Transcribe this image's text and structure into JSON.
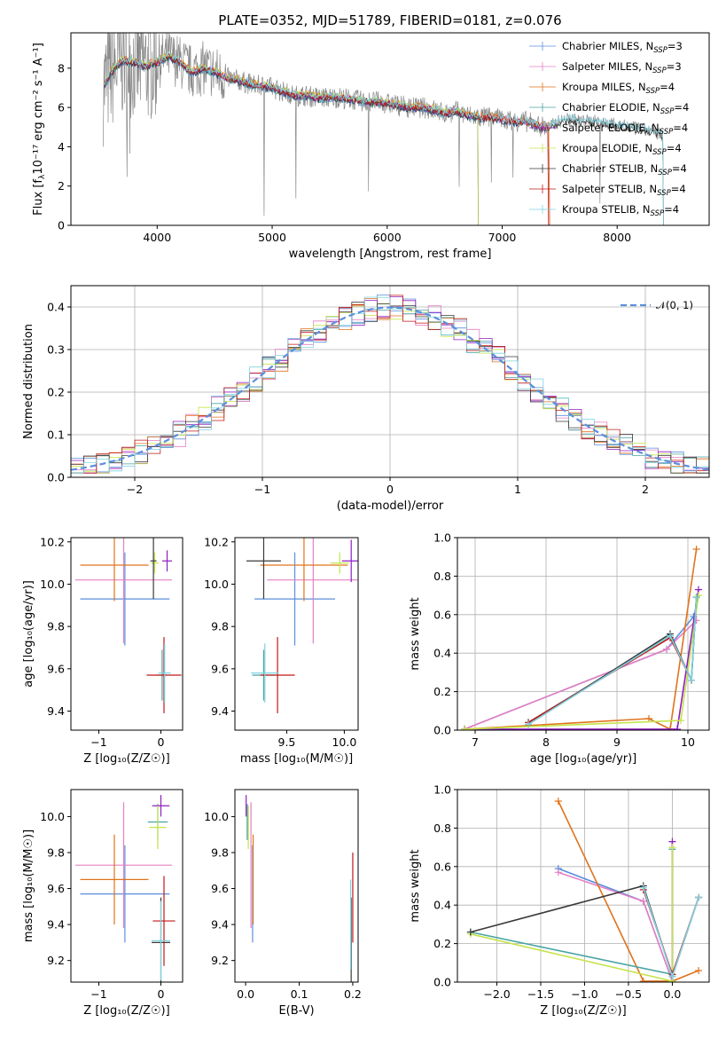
{
  "figure_title": "PLATE=0352, MJD=51789, FIBERID=0181, z=0.076",
  "colors": {
    "Chabrier MILES": "#5b8fdc",
    "Salpeter MILES": "#e67fc4",
    "Kroupa MILES": "#e0731c",
    "Chabrier ELODIE": "#4aa3a3",
    "Salpeter ELODIE": "#8e1ec0",
    "Kroupa ELODIE": "#c5e34a",
    "Chabrier STELIB": "#3a3a3a",
    "Salpeter STELIB": "#c01818",
    "Kroupa STELIB": "#7ed3e0",
    "data": "#8a8a8a",
    "normal": "#5b8fdc"
  },
  "chart_data": [
    {
      "id": "spectrum",
      "type": "line",
      "xlabel": "wavelength [Angstrom, rest frame]",
      "ylabel_main": "Flux [f",
      "ylabel_sub": "λ",
      "ylabel_rest": "10⁻¹⁷ erg cm⁻² s⁻¹ A⁻¹]",
      "xlim": [
        3250,
        8800
      ],
      "ylim": [
        0,
        9.8
      ],
      "xticks": [
        4000,
        5000,
        6000,
        7000,
        8000
      ],
      "yticks": [
        0,
        2,
        4,
        6,
        8
      ],
      "data_x": [
        3530,
        3600,
        3700,
        3800,
        3900,
        4000,
        4100,
        4200,
        4300,
        4400,
        4500,
        4600,
        4700,
        4800,
        4900,
        5000,
        5100,
        5200,
        5300,
        5400,
        5500,
        5600,
        5700,
        5800,
        5900,
        6000,
        6100,
        6200,
        6300,
        6400,
        6500,
        6600,
        6700,
        6800,
        6900,
        7000,
        7100,
        7200,
        7300,
        7400,
        7500,
        7600,
        7700,
        7800,
        7900,
        8000,
        8100,
        8200,
        8300,
        8400
      ],
      "data_y": [
        7.0,
        7.8,
        8.4,
        8.3,
        8.1,
        8.3,
        8.6,
        8.3,
        7.8,
        8.0,
        7.8,
        7.5,
        7.4,
        7.2,
        7.1,
        7.0,
        6.8,
        6.6,
        6.6,
        6.5,
        6.5,
        6.5,
        6.4,
        6.3,
        6.3,
        6.2,
        6.1,
        6.0,
        6.0,
        5.9,
        5.7,
        5.8,
        5.6,
        5.5,
        5.5,
        5.4,
        5.3,
        5.3,
        5.1,
        5.0,
        5.3,
        5.4,
        5.3,
        5.3,
        5.2,
        5.1,
        5.0,
        4.9,
        4.8,
        4.6
      ],
      "legend": [
        {
          "name": "Chabrier MILES, N",
          "sub": "SSP",
          "end": "=3"
        },
        {
          "name": "Salpeter MILES, N",
          "sub": "SSP",
          "end": "=3"
        },
        {
          "name": "Kroupa MILES, N",
          "sub": "SSP",
          "end": "=4"
        },
        {
          "name": "Chabrier ELODIE, N",
          "sub": "SSP",
          "end": "=4"
        },
        {
          "name": "Salpeter ELODIE, N",
          "sub": "SSP",
          "end": "=4"
        },
        {
          "name": "Kroupa ELODIE, N",
          "sub": "SSP",
          "end": "=4"
        },
        {
          "name": "Chabrier STELIB, N",
          "sub": "SSP",
          "end": "=4"
        },
        {
          "name": "Salpeter STELIB, N",
          "sub": "SSP",
          "end": "=4"
        },
        {
          "name": "Kroupa STELIB, N",
          "sub": "SSP",
          "end": "=4"
        }
      ],
      "legend_position": "upper-right"
    },
    {
      "id": "residuals",
      "type": "histogram",
      "xlabel": "(data-model)/error",
      "ylabel": "Normed distribution",
      "xlim": [
        -2.5,
        2.5
      ],
      "ylim": [
        0,
        0.45
      ],
      "xticks": [
        -2,
        -1,
        0,
        1,
        2
      ],
      "yticks": [
        0.0,
        0.1,
        0.2,
        0.3,
        0.4
      ],
      "legend": [
        "𝒩(0, 1)"
      ],
      "legend_position": "upper-right",
      "grid": true
    },
    {
      "id": "age_vs_Z",
      "type": "errorbar",
      "xlabel": "Z [log₁₀(Z/Z☉)]",
      "ylabel": "age  [log₁₀(age/yr)]",
      "xlim": [
        -1.45,
        0.35
      ],
      "ylim": [
        9.31,
        10.22
      ],
      "xticks": [
        -1,
        0
      ],
      "yticks": [
        9.4,
        9.6,
        9.8,
        10.0,
        10.2
      ],
      "points": [
        {
          "m": "Chabrier MILES",
          "x": -0.58,
          "xerr": 0.72,
          "y": 9.93,
          "yerr": 0.22
        },
        {
          "m": "Salpeter MILES",
          "x": -0.6,
          "xerr": 0.78,
          "y": 10.02,
          "yerr": 0.3
        },
        {
          "m": "Kroupa MILES",
          "x": -0.75,
          "xerr": 0.55,
          "y": 10.09,
          "yerr": 0.17
        },
        {
          "m": "Chabrier ELODIE",
          "x": 0.02,
          "xerr": 0.08,
          "y": 9.57,
          "yerr": 0.12
        },
        {
          "m": "Salpeter ELODIE",
          "x": 0.1,
          "xerr": 0.08,
          "y": 10.11,
          "yerr": 0.05
        },
        {
          "m": "Kroupa ELODIE",
          "x": -0.1,
          "xerr": 0.06,
          "y": 10.1,
          "yerr": 0.05
        },
        {
          "m": "Chabrier STELIB",
          "x": -0.12,
          "xerr": 0.05,
          "y": 10.11,
          "yerr": 0.18
        },
        {
          "m": "Salpeter STELIB",
          "x": 0.05,
          "xerr": 0.28,
          "y": 9.57,
          "yerr": 0.18
        },
        {
          "m": "Kroupa STELIB",
          "x": 0.06,
          "xerr": 0.1,
          "y": 9.58,
          "yerr": 0.14
        }
      ]
    },
    {
      "id": "age_vs_mass",
      "type": "errorbar",
      "xlabel": "mass [log₁₀(M/M☉)]",
      "ylabel": "",
      "xlim": [
        9.05,
        10.12
      ],
      "ylim": [
        9.31,
        10.22
      ],
      "xticks": [
        9.5,
        10.0
      ],
      "yticks": [
        9.4,
        9.6,
        9.8,
        10.0,
        10.2
      ],
      "points": [
        {
          "m": "Chabrier MILES",
          "x": 9.57,
          "xerr": 0.35,
          "y": 9.93,
          "yerr": 0.22
        },
        {
          "m": "Salpeter MILES",
          "x": 9.73,
          "xerr": 0.4,
          "y": 10.02,
          "yerr": 0.3
        },
        {
          "m": "Kroupa MILES",
          "x": 9.65,
          "xerr": 0.38,
          "y": 10.09,
          "yerr": 0.17
        },
        {
          "m": "Chabrier ELODIE",
          "x": 9.3,
          "xerr": 0.1,
          "y": 9.57,
          "yerr": 0.12
        },
        {
          "m": "Salpeter ELODIE",
          "x": 10.06,
          "xerr": 0.08,
          "y": 10.11,
          "yerr": 0.1
        },
        {
          "m": "Kroupa ELODIE",
          "x": 9.96,
          "xerr": 0.08,
          "y": 10.1,
          "yerr": 0.05
        },
        {
          "m": "Chabrier STELIB",
          "x": 9.3,
          "xerr": 0.15,
          "y": 10.11,
          "yerr": 0.18
        },
        {
          "m": "Salpeter STELIB",
          "x": 9.42,
          "xerr": 0.15,
          "y": 9.57,
          "yerr": 0.18
        },
        {
          "m": "Kroupa STELIB",
          "x": 9.31,
          "xerr": 0.12,
          "y": 9.58,
          "yerr": 0.14
        }
      ]
    },
    {
      "id": "weight_vs_age",
      "type": "line",
      "xlabel": "age  [log₁₀(age/yr)]",
      "ylabel": "mass weight",
      "xlim": [
        6.75,
        10.3
      ],
      "ylim": [
        0,
        1.0
      ],
      "xticks": [
        7,
        8,
        9,
        10
      ],
      "yticks": [
        0.0,
        0.2,
        0.4,
        0.6,
        0.8,
        1.0
      ],
      "grid": true,
      "series": [
        {
          "m": "Chabrier MILES",
          "x": [
            6.85,
            9.7,
            10.08
          ],
          "y": [
            0.005,
            0.42,
            0.59
          ]
        },
        {
          "m": "Salpeter MILES",
          "x": [
            6.85,
            9.7,
            10.12
          ],
          "y": [
            0.005,
            0.42,
            0.57
          ]
        },
        {
          "m": "Kroupa MILES",
          "x": [
            6.85,
            9.45,
            9.75,
            10.12
          ],
          "y": [
            0.005,
            0.06,
            0.005,
            0.94
          ]
        },
        {
          "m": "Chabrier ELODIE",
          "x": [
            7.75,
            9.75,
            10.05,
            10.12
          ],
          "y": [
            0.04,
            0.49,
            0.26,
            0.69
          ]
        },
        {
          "m": "Salpeter ELODIE",
          "x": [
            6.85,
            9.85,
            10.15
          ],
          "y": [
            0.005,
            0.005,
            0.73
          ]
        },
        {
          "m": "Kroupa ELODIE",
          "x": [
            6.85,
            9.9,
            10.15
          ],
          "y": [
            0.005,
            0.05,
            0.7
          ]
        },
        {
          "m": "Chabrier STELIB",
          "x": [
            7.75,
            9.75,
            10.05,
            10.12
          ],
          "y": [
            0.03,
            0.5,
            0.26,
            0.69
          ]
        },
        {
          "m": "Salpeter STELIB",
          "x": [
            7.75,
            9.75,
            10.05
          ],
          "y": [
            0.04,
            0.48,
            0.26
          ]
        },
        {
          "m": "Kroupa STELIB",
          "x": [
            7.75,
            9.75,
            10.05,
            10.12
          ],
          "y": [
            0.03,
            0.49,
            0.26,
            0.69
          ]
        }
      ]
    },
    {
      "id": "mass_vs_Z",
      "type": "errorbar",
      "xlabel": "Z [log₁₀(Z/Z☉)]",
      "ylabel": "mass [log₁₀(M/M☉)]",
      "xlim": [
        -1.45,
        0.35
      ],
      "ylim": [
        9.08,
        10.15
      ],
      "xticks": [
        -1,
        0
      ],
      "yticks": [
        9.2,
        9.4,
        9.6,
        9.8,
        10.0
      ],
      "points": [
        {
          "m": "Chabrier MILES",
          "x": -0.58,
          "xerr": 0.72,
          "y": 9.57,
          "yerr": 0.27
        },
        {
          "m": "Salpeter MILES",
          "x": -0.6,
          "xerr": 0.78,
          "y": 9.73,
          "yerr": 0.35
        },
        {
          "m": "Kroupa MILES",
          "x": -0.75,
          "xerr": 0.55,
          "y": 9.65,
          "yerr": 0.25
        },
        {
          "m": "Chabrier ELODIE",
          "x": -0.05,
          "xerr": 0.16,
          "y": 9.97,
          "yerr": 0.1
        },
        {
          "m": "Salpeter ELODIE",
          "x": 0.0,
          "xerr": 0.14,
          "y": 10.06,
          "yerr": 0.06
        },
        {
          "m": "Kroupa ELODIE",
          "x": -0.05,
          "xerr": 0.14,
          "y": 9.94,
          "yerr": 0.12
        },
        {
          "m": "Chabrier STELIB",
          "x": 0.0,
          "xerr": 0.15,
          "y": 9.3,
          "yerr": 0.25
        },
        {
          "m": "Salpeter STELIB",
          "x": 0.05,
          "xerr": 0.18,
          "y": 9.42,
          "yerr": 0.25
        },
        {
          "m": "Kroupa STELIB",
          "x": 0.0,
          "xerr": 0.15,
          "y": 9.31,
          "yerr": 0.22
        }
      ]
    },
    {
      "id": "mass_vs_ebv",
      "type": "errorbar",
      "xlabel": "E(B-V)",
      "ylabel": "",
      "xlim": [
        -0.02,
        0.21
      ],
      "ylim": [
        9.08,
        10.15
      ],
      "xticks": [
        0.0,
        0.1,
        0.2
      ],
      "yticks": [
        9.2,
        9.4,
        9.6,
        9.8,
        10.0
      ],
      "points": [
        {
          "m": "Chabrier MILES",
          "x": 0.013,
          "y": 9.57,
          "yerr": 0.27
        },
        {
          "m": "Salpeter MILES",
          "x": 0.01,
          "y": 9.73,
          "yerr": 0.35
        },
        {
          "m": "Kroupa MILES",
          "x": 0.014,
          "y": 9.65,
          "yerr": 0.25
        },
        {
          "m": "Chabrier ELODIE",
          "x": 0.003,
          "y": 9.97,
          "yerr": 0.1
        },
        {
          "m": "Salpeter ELODIE",
          "x": 0.001,
          "y": 10.06,
          "yerr": 0.06
        },
        {
          "m": "Kroupa ELODIE",
          "x": 0.005,
          "y": 9.94,
          "yerr": 0.12
        },
        {
          "m": "Chabrier STELIB",
          "x": 0.197,
          "y": 9.3,
          "yerr": 0.25
        },
        {
          "m": "Salpeter STELIB",
          "x": 0.2,
          "y": 9.55,
          "yerr": 0.25
        },
        {
          "m": "Kroupa STELIB",
          "x": 0.196,
          "y": 9.4,
          "yerr": 0.25
        }
      ]
    },
    {
      "id": "weight_vs_Z",
      "type": "line",
      "xlabel": "Z [log₁₀(Z/Z☉)]",
      "ylabel": "mass weight",
      "xlim": [
        -2.45,
        0.42
      ],
      "ylim": [
        0,
        1.0
      ],
      "xticks": [
        -2.0,
        -1.5,
        -1.0,
        -0.5,
        0.0
      ],
      "yticks": [
        0.0,
        0.2,
        0.4,
        0.6,
        0.8,
        1.0
      ],
      "grid": true,
      "series": [
        {
          "m": "Chabrier MILES",
          "x": [
            -1.3,
            -0.33,
            0.0
          ],
          "y": [
            0.59,
            0.42,
            0.005
          ]
        },
        {
          "m": "Salpeter MILES",
          "x": [
            -1.3,
            -0.33,
            0.0
          ],
          "y": [
            0.57,
            0.42,
            0.005
          ]
        },
        {
          "m": "Kroupa MILES",
          "x": [
            -1.3,
            -0.33,
            0.0,
            0.3
          ],
          "y": [
            0.94,
            0.005,
            0.005,
            0.06
          ]
        },
        {
          "m": "Chabrier ELODIE",
          "x": [
            -2.3,
            0.0,
            0.0
          ],
          "y": [
            0.26,
            0.04,
            0.69
          ]
        },
        {
          "m": "Salpeter ELODIE",
          "x": [
            0.0,
            0.0
          ],
          "y": [
            0.005,
            0.73
          ]
        },
        {
          "m": "Kroupa ELODIE",
          "x": [
            -2.3,
            0.0,
            0.0
          ],
          "y": [
            0.25,
            0.005,
            0.7
          ]
        },
        {
          "m": "Chabrier STELIB",
          "x": [
            -2.3,
            -0.33,
            0.0,
            0.3
          ],
          "y": [
            0.26,
            0.5,
            0.03,
            0.44
          ]
        },
        {
          "m": "Salpeter STELIB",
          "x": [
            -0.33,
            0.0,
            0.3
          ],
          "y": [
            0.48,
            0.04,
            0.44
          ]
        },
        {
          "m": "Kroupa STELIB",
          "x": [
            -0.33,
            0.0,
            0.3
          ],
          "y": [
            0.49,
            0.03,
            0.44
          ]
        }
      ]
    }
  ]
}
